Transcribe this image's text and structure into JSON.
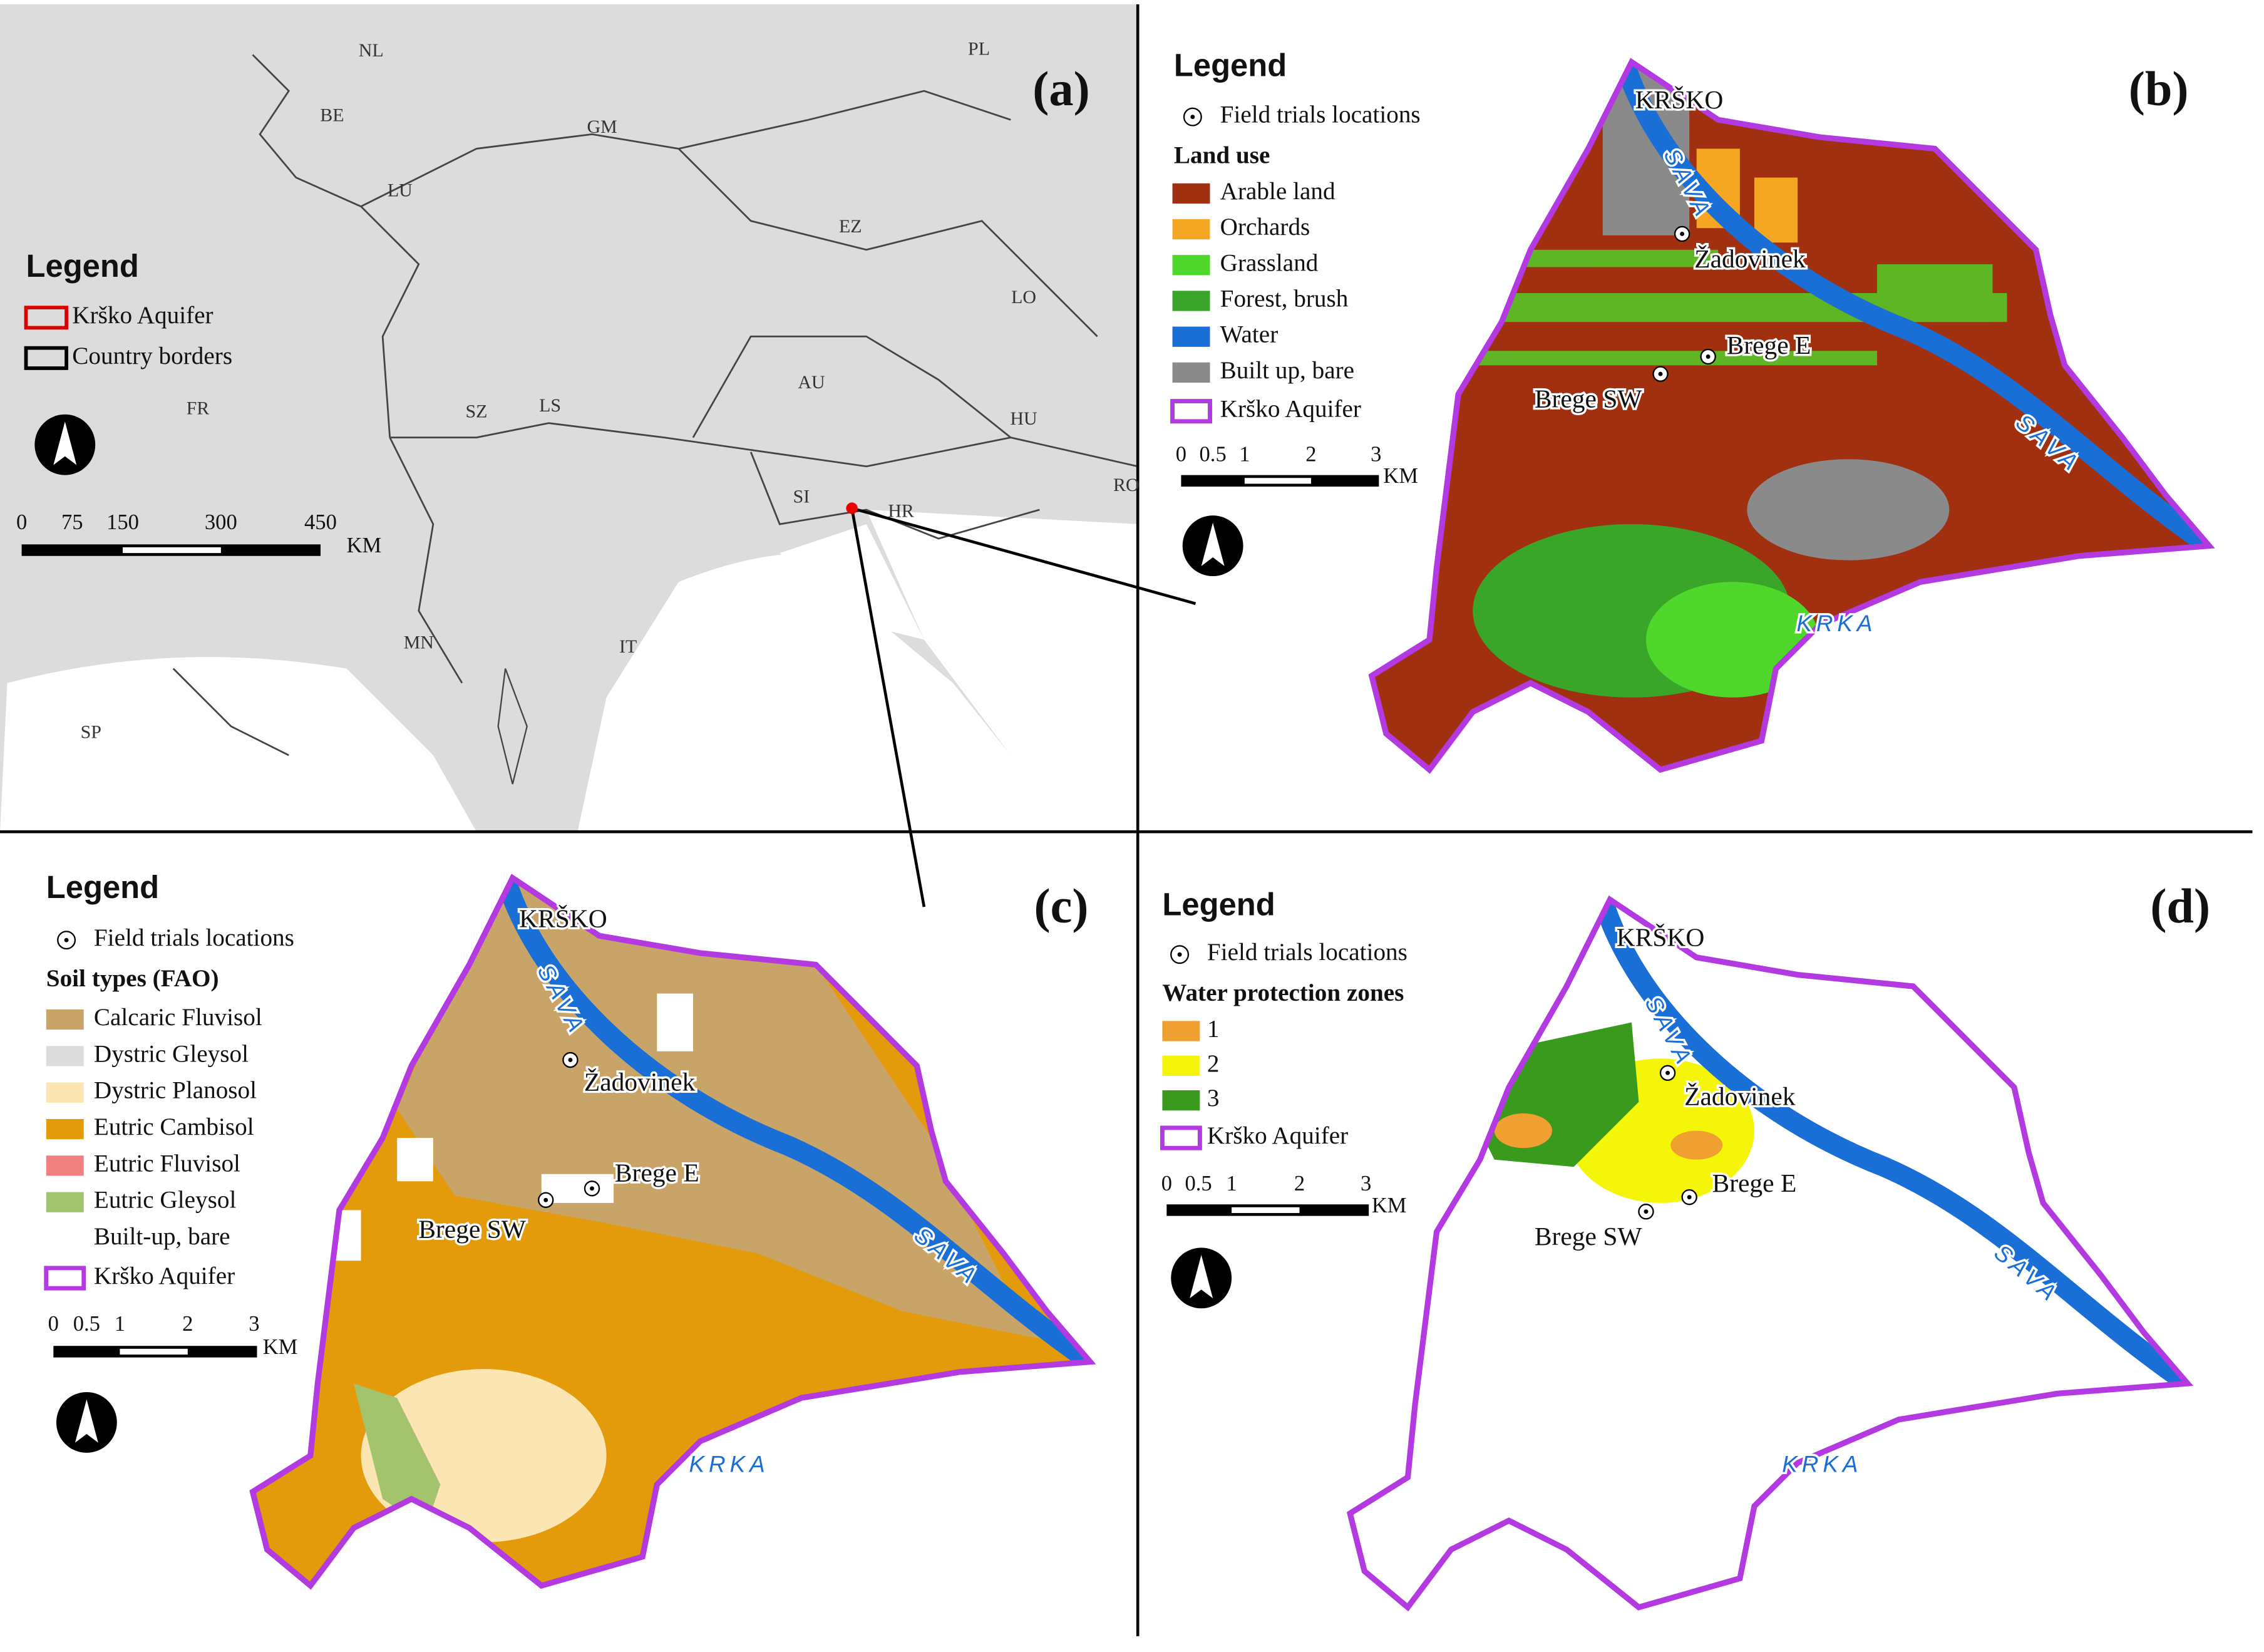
{
  "panels": [
    {
      "label": "(a)",
      "legend": {
        "title": "Legend",
        "items": [
          {
            "label": "Krško Aquifer",
            "color": "#e00000"
          },
          {
            "label": "Country borders",
            "color": "#000000"
          }
        ]
      },
      "countries": [
        "NL",
        "PL",
        "BE",
        "GM",
        "LU",
        "EZ",
        "LO",
        "AU",
        "FR",
        "SZ",
        "LS",
        "HU",
        "SI",
        "HR",
        "RO",
        "MN",
        "IT",
        "SP"
      ],
      "scale": {
        "ticks": [
          "0",
          "75",
          "150",
          "300",
          "450"
        ],
        "unit": "KM"
      }
    },
    {
      "label": "(b)",
      "legend": {
        "title": "Legend",
        "point": "Field trials locations",
        "section": "Land use",
        "items": [
          {
            "label": "Arable land",
            "color": "#a0300f"
          },
          {
            "label": "Orchards",
            "color": "#f5a623"
          },
          {
            "label": "Grassland",
            "color": "#4fd82b"
          },
          {
            "label": "Forest, brush",
            "color": "#3aa629"
          },
          {
            "label": "Water",
            "color": "#1a6fd6"
          },
          {
            "label": "Built up, bare",
            "color": "#8a8a8a"
          }
        ],
        "boundary": "Krško Aquifer"
      },
      "places": [
        "KRŠKO",
        "Žadovinek",
        "Brege E",
        "Brege SW"
      ],
      "rivers": [
        "SAVA",
        "SAVA",
        "KRKA"
      ],
      "scale": {
        "ticks": [
          "0",
          "0.5",
          "1",
          "2",
          "3"
        ],
        "unit": "KM"
      }
    },
    {
      "label": "(c)",
      "legend": {
        "title": "Legend",
        "point": "Field trials locations",
        "section": "Soil types (FAO)",
        "items": [
          {
            "label": "Calcaric Fluvisol",
            "color": "#c8a468"
          },
          {
            "label": "Dystric Gleysol",
            "color": "#dcdcdc"
          },
          {
            "label": "Dystric Planosol",
            "color": "#fbe6b3"
          },
          {
            "label": "Eutric Cambisol",
            "color": "#e39a0b"
          },
          {
            "label": "Eutric Fluvisol",
            "color": "#f08080"
          },
          {
            "label": "Eutric Gleysol",
            "color": "#a3c46c"
          },
          {
            "label": "Built-up, bare",
            "color": "#ffffff"
          }
        ],
        "boundary": "Krško Aquifer"
      },
      "places": [
        "KRŠKO",
        "Žadovinek",
        "Brege E",
        "Brege SW"
      ],
      "rivers": [
        "SAVA",
        "SAVA",
        "KRKA"
      ],
      "scale": {
        "ticks": [
          "0",
          "0.5",
          "1",
          "2",
          "3"
        ],
        "unit": "KM"
      }
    },
    {
      "label": "(d)",
      "legend": {
        "title": "Legend",
        "point": "Field trials locations",
        "section": "Water protection zones",
        "items": [
          {
            "label": "1",
            "color": "#f0a030"
          },
          {
            "label": "2",
            "color": "#f5f50a"
          },
          {
            "label": "3",
            "color": "#3a9a1e"
          }
        ],
        "boundary": "Krško Aquifer"
      },
      "places": [
        "KRŠKO",
        "Žadovinek",
        "Brege E",
        "Brege SW"
      ],
      "rivers": [
        "SAVA",
        "SAVA",
        "KRKA"
      ],
      "scale": {
        "ticks": [
          "0",
          "0.5",
          "1",
          "2",
          "3"
        ],
        "unit": "KM"
      }
    }
  ]
}
